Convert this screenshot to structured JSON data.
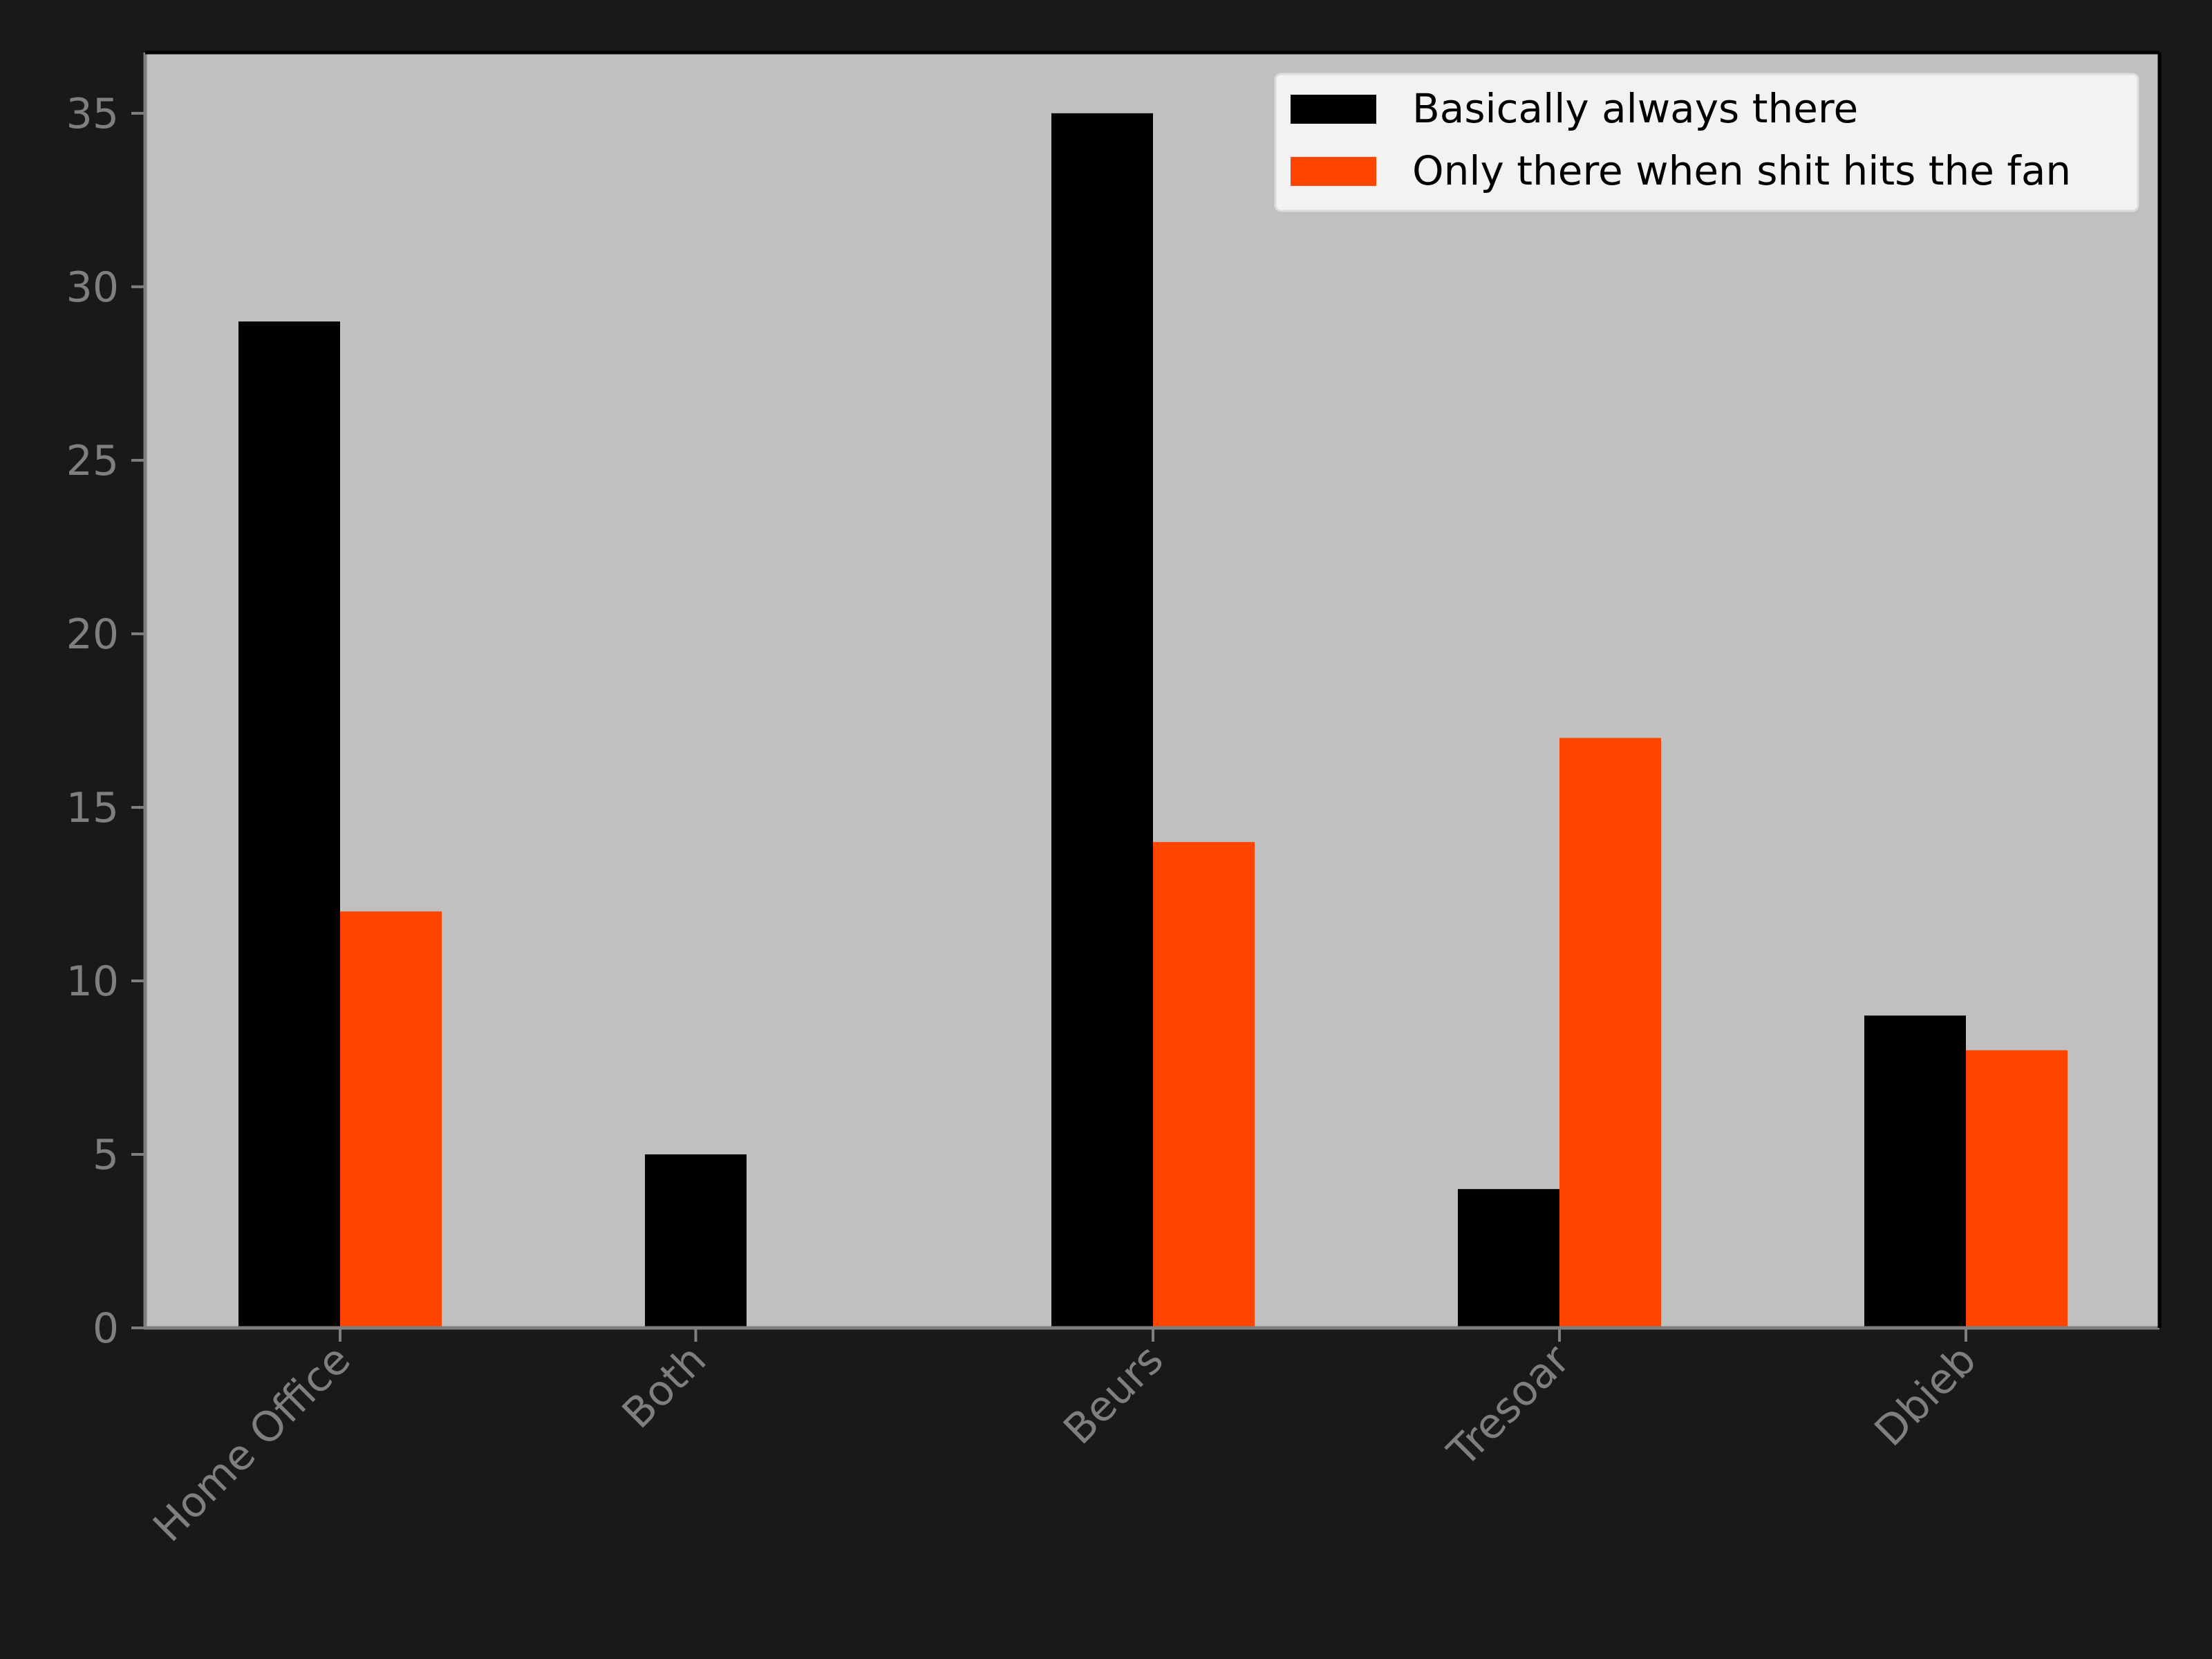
{
  "chart_data": {
    "type": "bar",
    "title": "",
    "xlabel": "",
    "ylabel": "",
    "categories": [
      "Home Office",
      "Both",
      "Beurs",
      "Tresoar",
      "Dbieb"
    ],
    "series": [
      {
        "name": "Basically always there",
        "color": "#000000",
        "values": [
          29,
          5,
          35,
          4,
          9
        ]
      },
      {
        "name": "Only there when shit hits the fan",
        "color": "#ff4500",
        "values": [
          12,
          null,
          14,
          17,
          8
        ]
      }
    ],
    "ylim": [
      0,
      36.75
    ],
    "yticks": [
      0,
      5,
      10,
      15,
      20,
      25,
      30,
      35
    ],
    "grid": false,
    "legend_position": "upper-right",
    "colors": {
      "figure_background": "#18191b",
      "plot_background": "#c0c0c0",
      "tick_text": "#7f7f7f",
      "legend_background": "#f2f2f2"
    }
  }
}
